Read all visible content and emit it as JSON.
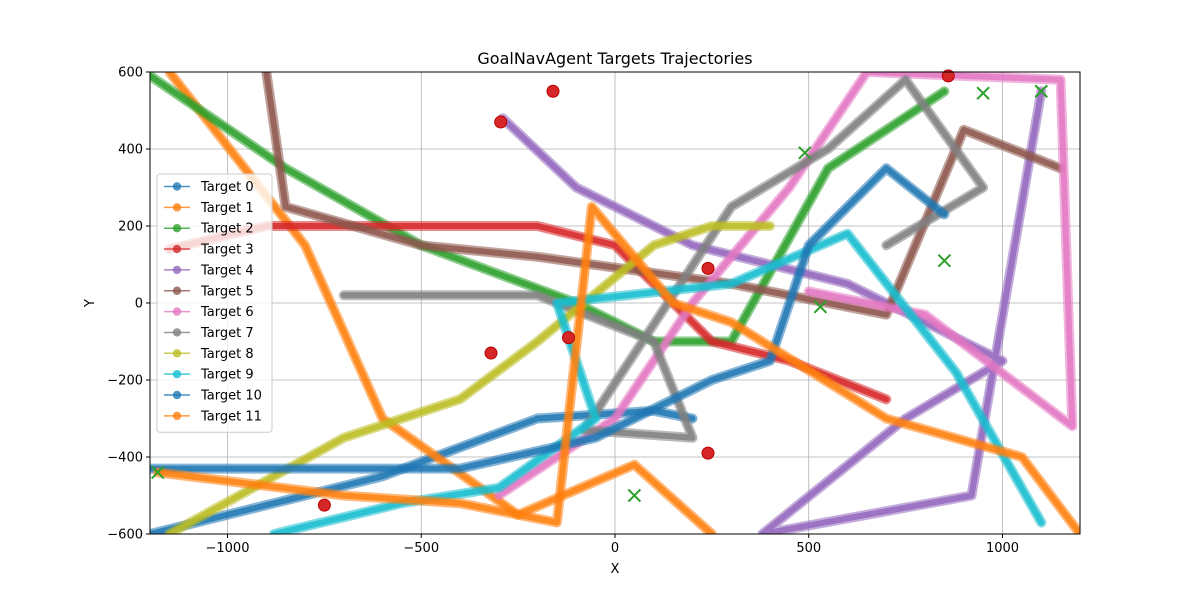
{
  "chart_data": {
    "type": "line",
    "title": "GoalNavAgent Targets Trajectories",
    "xlabel": "X",
    "ylabel": "Y",
    "xlim": [
      -1200,
      1200
    ],
    "ylim": [
      -600,
      600
    ],
    "xticks": [
      -1000,
      -500,
      0,
      500,
      1000
    ],
    "yticks": [
      -600,
      -400,
      -200,
      0,
      200,
      400,
      600
    ],
    "xtick_labels": [
      "−1000",
      "−500",
      "0",
      "500",
      "1000"
    ],
    "ytick_labels": [
      "−600",
      "−400",
      "−200",
      "0",
      "200",
      "400",
      "600"
    ],
    "grid": true,
    "legend_position": "center-left",
    "start_marker": "red circle",
    "end_marker": "green x",
    "series": [
      {
        "name": "Target 0",
        "color": "#1f77b4",
        "points": [
          [
            -1200,
            -600
          ],
          [
            -600,
            -450
          ],
          [
            -200,
            -300
          ],
          [
            100,
            -280
          ],
          [
            200,
            -300
          ]
        ]
      },
      {
        "name": "Target 1",
        "color": "#ff7f0e",
        "points": [
          [
            -1150,
            600
          ],
          [
            -800,
            150
          ],
          [
            -600,
            -300
          ],
          [
            -250,
            -550
          ],
          [
            50,
            -420
          ],
          [
            250,
            -600
          ]
        ]
      },
      {
        "name": "Target 2",
        "color": "#2ca02c",
        "points": [
          [
            -1200,
            590
          ],
          [
            -850,
            350
          ],
          [
            -500,
            150
          ],
          [
            -100,
            0
          ],
          [
            100,
            -100
          ],
          [
            300,
            -100
          ],
          [
            550,
            350
          ],
          [
            850,
            550
          ]
        ]
      },
      {
        "name": "Target 3",
        "color": "#d62728",
        "points": [
          [
            -1150,
            140
          ],
          [
            -900,
            200
          ],
          [
            -500,
            200
          ],
          [
            -200,
            200
          ],
          [
            0,
            150
          ],
          [
            250,
            -100
          ],
          [
            450,
            -150
          ],
          [
            700,
            -250
          ]
        ]
      },
      {
        "name": "Target 4",
        "color": "#9467bd",
        "points": [
          [
            -290,
            480
          ],
          [
            -100,
            300
          ],
          [
            200,
            150
          ],
          [
            600,
            50
          ],
          [
            1000,
            -150
          ],
          [
            750,
            -300
          ],
          [
            380,
            -600
          ],
          [
            920,
            -500
          ],
          [
            1100,
            550
          ]
        ]
      },
      {
        "name": "Target 5",
        "color": "#8c564b",
        "points": [
          [
            -900,
            600
          ],
          [
            -850,
            250
          ],
          [
            -500,
            150
          ],
          [
            -200,
            120
          ],
          [
            300,
            50
          ],
          [
            700,
            -30
          ],
          [
            900,
            450
          ],
          [
            1150,
            350
          ]
        ]
      },
      {
        "name": "Target 6",
        "color": "#e377c2",
        "points": [
          [
            -300,
            -500
          ],
          [
            0,
            -300
          ],
          [
            200,
            0
          ],
          [
            450,
            300
          ],
          [
            650,
            600
          ],
          [
            1150,
            580
          ],
          [
            1180,
            -320
          ],
          [
            800,
            -30
          ],
          [
            500,
            30
          ]
        ]
      },
      {
        "name": "Target 7",
        "color": "#7f7f7f",
        "points": [
          [
            -700,
            20
          ],
          [
            -200,
            20
          ],
          [
            100,
            -100
          ],
          [
            200,
            -350
          ],
          [
            -80,
            -330
          ],
          [
            300,
            250
          ],
          [
            550,
            400
          ],
          [
            750,
            580
          ],
          [
            950,
            300
          ],
          [
            700,
            150
          ]
        ]
      },
      {
        "name": "Target 8",
        "color": "#bcbd22",
        "points": [
          [
            -1150,
            -600
          ],
          [
            -700,
            -350
          ],
          [
            -400,
            -250
          ],
          [
            -200,
            -100
          ],
          [
            100,
            150
          ],
          [
            250,
            200
          ],
          [
            400,
            200
          ]
        ]
      },
      {
        "name": "Target 9",
        "color": "#17becf",
        "points": [
          [
            -880,
            -600
          ],
          [
            -550,
            -520
          ],
          [
            -300,
            -480
          ],
          [
            -50,
            -300
          ],
          [
            -150,
            0
          ],
          [
            300,
            50
          ],
          [
            600,
            180
          ],
          [
            880,
            -180
          ],
          [
            1100,
            -570
          ]
        ]
      },
      {
        "name": "Target 10",
        "color": "#1f77b4",
        "points": [
          [
            -1200,
            -430
          ],
          [
            -400,
            -430
          ],
          [
            -50,
            -350
          ],
          [
            250,
            -200
          ],
          [
            400,
            -150
          ],
          [
            500,
            150
          ],
          [
            700,
            350
          ],
          [
            850,
            230
          ]
        ]
      },
      {
        "name": "Target 11",
        "color": "#ff7f0e",
        "points": [
          [
            -1180,
            -440
          ],
          [
            -700,
            -500
          ],
          [
            -400,
            -520
          ],
          [
            -150,
            -570
          ],
          [
            -60,
            250
          ],
          [
            150,
            0
          ],
          [
            300,
            -50
          ],
          [
            700,
            -300
          ],
          [
            1050,
            -400
          ],
          [
            1200,
            -600
          ]
        ]
      }
    ],
    "start_points": [
      [
        -160,
        550
      ],
      [
        -295,
        470
      ],
      [
        -320,
        -130
      ],
      [
        -750,
        -525
      ],
      [
        240,
        -390
      ],
      [
        240,
        90
      ],
      [
        -120,
        -90
      ],
      [
        860,
        590
      ]
    ],
    "end_points": [
      [
        -1180,
        -440
      ],
      [
        490,
        390
      ],
      [
        850,
        110
      ],
      [
        1100,
        550
      ],
      [
        950,
        545
      ],
      [
        530,
        -10
      ],
      [
        50,
        -500
      ]
    ]
  }
}
